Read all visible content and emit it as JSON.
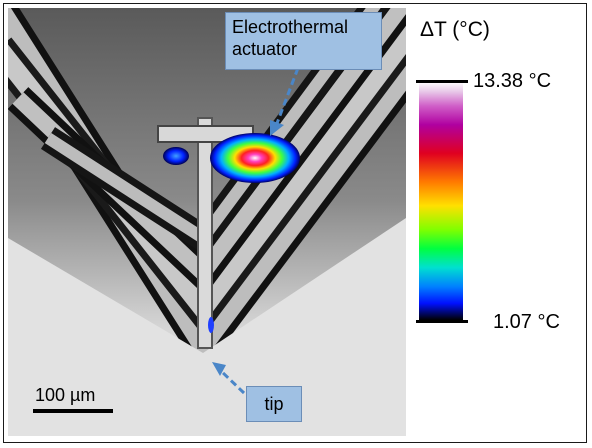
{
  "colorbar": {
    "title": "ΔT (°C)",
    "max_label": "13.38 °C",
    "min_label": "1.07 °C",
    "colors": [
      "#ffffff",
      "#d060c8",
      "#b000a0",
      "#e00020",
      "#ff7a00",
      "#ffe000",
      "#80ff00",
      "#00ff40",
      "#00e0d0",
      "#0080ff",
      "#0010ff",
      "#000000"
    ]
  },
  "callouts": {
    "actuator": "Electrothermal actuator",
    "tip": "tip"
  },
  "scale_bar": {
    "label": "100 µm"
  },
  "arrow_color": "#4a86c8"
}
